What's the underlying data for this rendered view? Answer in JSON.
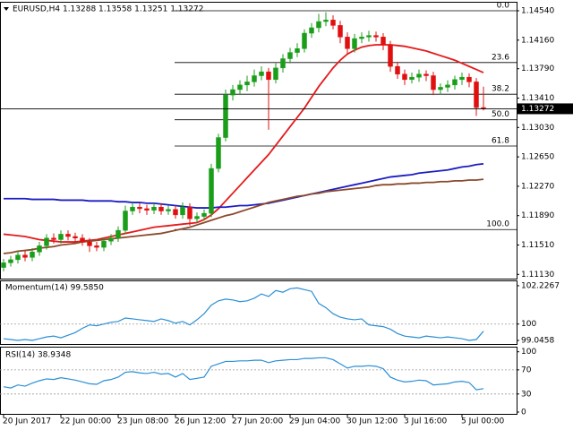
{
  "chart_data": [
    {
      "type": "candlestick",
      "title": "EURUSD,H4  1.13288 1.13558 1.13251 1.13272",
      "categories": [
        "20 Jun 2017",
        null,
        null,
        null,
        null,
        null,
        null,
        null,
        "22 Jun 00:00",
        null,
        null,
        null,
        null,
        null,
        null,
        null,
        "23 Jun 08:00",
        null,
        null,
        null,
        null,
        null,
        null,
        null,
        "26 Jun 12:00",
        null,
        null,
        null,
        null,
        null,
        null,
        null,
        "27 Jun 20:00",
        null,
        null,
        null,
        null,
        null,
        null,
        null,
        "29 Jun 04:00",
        null,
        null,
        null,
        null,
        null,
        null,
        null,
        "30 Jun 12:00",
        null,
        null,
        null,
        null,
        null,
        null,
        null,
        "3 Jul 16:00",
        null,
        null,
        null,
        null,
        null,
        null,
        null,
        "5 Jul 00:00",
        null,
        null,
        null
      ],
      "open": [
        1.1122,
        1.1128,
        1.1132,
        1.1138,
        1.1135,
        1.1142,
        1.115,
        1.116,
        1.1158,
        1.1165,
        1.1162,
        1.116,
        1.1155,
        1.115,
        1.1148,
        1.1156,
        1.116,
        1.117,
        1.1195,
        1.12,
        1.1198,
        1.1196,
        1.12,
        1.1195,
        1.1197,
        1.119,
        1.12,
        1.1185,
        1.1188,
        1.1192,
        1.125,
        1.129,
        1.1345,
        1.1352,
        1.1358,
        1.1362,
        1.137,
        1.1375,
        1.1365,
        1.138,
        1.1392,
        1.14,
        1.1405,
        1.1425,
        1.1432,
        1.144,
        1.1442,
        1.1435,
        1.142,
        1.1405,
        1.1418,
        1.142,
        1.1422,
        1.142,
        1.141,
        1.1382,
        1.1372,
        1.1365,
        1.1368,
        1.1372,
        1.137,
        1.1352,
        1.1355,
        1.1358,
        1.1365,
        1.1368,
        1.1362,
        1.13288
      ],
      "high": [
        1.1133,
        1.1137,
        1.1143,
        1.1143,
        1.1147,
        1.1155,
        1.1165,
        1.1166,
        1.117,
        1.117,
        1.1167,
        1.1165,
        1.116,
        1.1155,
        1.1161,
        1.1165,
        1.1175,
        1.1202,
        1.1206,
        1.1205,
        1.1203,
        1.1205,
        1.1205,
        1.1202,
        1.1202,
        1.1206,
        1.1205,
        1.1193,
        1.1197,
        1.1256,
        1.1295,
        1.1352,
        1.1358,
        1.1364,
        1.137,
        1.1378,
        1.1382,
        1.138,
        1.1386,
        1.1398,
        1.1406,
        1.1412,
        1.143,
        1.1438,
        1.145,
        1.1452,
        1.1448,
        1.1441,
        1.1426,
        1.1424,
        1.1426,
        1.1428,
        1.1427,
        1.1425,
        1.1415,
        1.1388,
        1.1378,
        1.1374,
        1.1378,
        1.1377,
        1.1375,
        1.136,
        1.1364,
        1.137,
        1.1374,
        1.1373,
        1.1367,
        1.13558
      ],
      "low": [
        1.1117,
        1.1123,
        1.1127,
        1.113,
        1.113,
        1.1137,
        1.1145,
        1.1153,
        1.1153,
        1.1157,
        1.1155,
        1.115,
        1.1142,
        1.1143,
        1.1143,
        1.1151,
        1.1155,
        1.1165,
        1.119,
        1.1192,
        1.119,
        1.1191,
        1.119,
        1.119,
        1.1185,
        1.1185,
        1.1176,
        1.118,
        1.1183,
        1.1187,
        1.1245,
        1.1285,
        1.1338,
        1.1345,
        1.135,
        1.1356,
        1.1364,
        1.13,
        1.136,
        1.1374,
        1.1386,
        1.1394,
        1.14,
        1.1419,
        1.1426,
        1.1434,
        1.143,
        1.1412,
        1.1398,
        1.14,
        1.1412,
        1.1414,
        1.1414,
        1.1403,
        1.1375,
        1.1366,
        1.1358,
        1.136,
        1.1362,
        1.1363,
        1.1345,
        1.1346,
        1.1349,
        1.1352,
        1.1358,
        1.1355,
        1.1318,
        1.13251
      ],
      "close": [
        1.1128,
        1.1132,
        1.1138,
        1.1135,
        1.1142,
        1.115,
        1.116,
        1.1158,
        1.1165,
        1.1162,
        1.116,
        1.1155,
        1.115,
        1.1148,
        1.1156,
        1.116,
        1.117,
        1.1195,
        1.12,
        1.1198,
        1.1196,
        1.12,
        1.1195,
        1.1197,
        1.119,
        1.12,
        1.1185,
        1.1188,
        1.1192,
        1.125,
        1.129,
        1.1345,
        1.1352,
        1.1358,
        1.1362,
        1.137,
        1.1375,
        1.1365,
        1.138,
        1.1392,
        1.14,
        1.1405,
        1.1425,
        1.1432,
        1.144,
        1.1442,
        1.1435,
        1.142,
        1.1405,
        1.1418,
        1.142,
        1.1422,
        1.142,
        1.141,
        1.1382,
        1.1372,
        1.1365,
        1.1368,
        1.1372,
        1.137,
        1.1352,
        1.1355,
        1.1358,
        1.1365,
        1.1368,
        1.1362,
        1.13288,
        1.13272
      ],
      "up_color": "#1a9e1a",
      "down_color": "#e01010",
      "series": [
        {
          "color": "#e41a1c",
          "values": [
            1.1165,
            1.1164,
            1.1163,
            1.1162,
            1.116,
            1.1158,
            1.1157,
            1.1156,
            1.1155,
            1.1155,
            1.1155,
            1.1156,
            1.1157,
            1.1158,
            1.116,
            1.1162,
            1.1164,
            1.1166,
            1.1168,
            1.117,
            1.1172,
            1.1174,
            1.1175,
            1.1176,
            1.1177,
            1.1178,
            1.1179,
            1.118,
            1.1184,
            1.119,
            1.1198,
            1.1208,
            1.1218,
            1.1228,
            1.1238,
            1.1248,
            1.1258,
            1.1268,
            1.128,
            1.1292,
            1.1304,
            1.1316,
            1.1328,
            1.1342,
            1.1356,
            1.1368,
            1.138,
            1.139,
            1.1398,
            1.1403,
            1.1407,
            1.1409,
            1.141,
            1.141,
            1.141,
            1.1409,
            1.1408,
            1.1406,
            1.1404,
            1.1402,
            1.1399,
            1.1396,
            1.1393,
            1.139,
            1.1386,
            1.1382,
            1.1378,
            1.1374
          ]
        },
        {
          "color": "#1c1cc4",
          "values": [
            1.1211,
            1.1211,
            1.1211,
            1.1211,
            1.121,
            1.121,
            1.121,
            1.121,
            1.1209,
            1.1209,
            1.1209,
            1.1209,
            1.1208,
            1.1208,
            1.1208,
            1.1208,
            1.1207,
            1.1207,
            1.1206,
            1.1206,
            1.1205,
            1.1205,
            1.1204,
            1.1203,
            1.1202,
            1.1201,
            1.12,
            1.1199,
            1.1199,
            1.1199,
            1.12,
            1.12,
            1.1201,
            1.1202,
            1.1202,
            1.1203,
            1.1204,
            1.1205,
            1.1207,
            1.1209,
            1.1211,
            1.1213,
            1.1215,
            1.1217,
            1.1219,
            1.1221,
            1.1223,
            1.1225,
            1.1227,
            1.1229,
            1.1231,
            1.1233,
            1.1235,
            1.1237,
            1.1239,
            1.124,
            1.1241,
            1.1242,
            1.1244,
            1.1245,
            1.1246,
            1.1247,
            1.1248,
            1.125,
            1.1252,
            1.1253,
            1.1255,
            1.1256
          ]
        },
        {
          "color": "#8b4a2b",
          "values": [
            1.114,
            1.1141,
            1.1143,
            1.1144,
            1.1145,
            1.1147,
            1.1148,
            1.1149,
            1.1151,
            1.1152,
            1.1153,
            1.1155,
            1.1156,
            1.1157,
            1.1158,
            1.1159,
            1.116,
            1.1161,
            1.1162,
            1.1163,
            1.1164,
            1.1165,
            1.1166,
            1.1168,
            1.117,
            1.1172,
            1.1174,
            1.1177,
            1.118,
            1.1183,
            1.1186,
            1.1189,
            1.1191,
            1.1194,
            1.1197,
            1.12,
            1.1203,
            1.1206,
            1.1208,
            1.121,
            1.1212,
            1.1214,
            1.1215,
            1.1217,
            1.1218,
            1.122,
            1.1221,
            1.1222,
            1.1223,
            1.1224,
            1.1225,
            1.1226,
            1.1228,
            1.1229,
            1.1229,
            1.123,
            1.123,
            1.1231,
            1.1231,
            1.1232,
            1.1232,
            1.1233,
            1.1233,
            1.1234,
            1.1234,
            1.1235,
            1.1235,
            1.1236
          ]
        }
      ],
      "fib_levels": [
        {
          "label": "0.0",
          "value": 1.1454
        },
        {
          "label": "23.6",
          "value": 1.1387
        },
        {
          "label": "38.2",
          "value": 1.1346
        },
        {
          "label": "50.0",
          "value": 1.1313
        },
        {
          "label": "61.8",
          "value": 1.1279
        },
        {
          "label": "100.0",
          "value": 1.1171
        }
      ],
      "ylim": [
        1.11064,
        1.14621
      ],
      "yticks": [
        {
          "value": 1.1454,
          "label": "1.14540"
        },
        {
          "value": 1.1416,
          "label": "1.14160"
        },
        {
          "value": 1.1379,
          "label": "1.13790"
        },
        {
          "value": 1.1341,
          "label": "1.13410"
        },
        {
          "value": 1.1303,
          "label": "1.13030"
        },
        {
          "value": 1.1265,
          "label": "1.12650"
        },
        {
          "value": 1.1227,
          "label": "1.12270"
        },
        {
          "value": 1.1189,
          "label": "1.11890"
        },
        {
          "value": 1.1151,
          "label": "1.11510"
        },
        {
          "value": 1.1113,
          "label": "1.11130"
        }
      ]
    },
    {
      "type": "line",
      "title": "Momentum(14) 99.5850",
      "series": [
        {
          "color": "#2a8fd6",
          "values": [
            99.15,
            99.1,
            99.05,
            99.1,
            99.05,
            99.15,
            99.25,
            99.3,
            99.2,
            99.35,
            99.5,
            99.75,
            99.95,
            99.9,
            100.0,
            100.1,
            100.15,
            100.35,
            100.3,
            100.25,
            100.2,
            100.15,
            100.3,
            100.2,
            100.05,
            100.15,
            99.95,
            100.25,
            100.6,
            101.1,
            101.35,
            101.45,
            101.4,
            101.3,
            101.35,
            101.5,
            101.75,
            101.6,
            101.95,
            101.85,
            102.05,
            102.1,
            102.0,
            101.9,
            101.2,
            100.95,
            100.6,
            100.4,
            100.3,
            100.25,
            100.3,
            99.95,
            99.9,
            99.85,
            99.7,
            99.45,
            99.3,
            99.25,
            99.2,
            99.3,
            99.25,
            99.2,
            99.25,
            99.2,
            99.15,
            99.05,
            99.1,
            99.585
          ]
        }
      ],
      "ylim": [
        98.84,
        102.38
      ],
      "yticks": [
        102.2267,
        100,
        99.0458
      ],
      "levels": [
        100
      ]
    },
    {
      "type": "line",
      "title": "RSI(14) 38.9348",
      "series": [
        {
          "color": "#2a8fd6",
          "values": [
            42,
            40,
            45,
            43,
            48,
            52,
            55,
            54,
            57,
            55,
            53,
            50,
            47,
            46,
            52,
            54,
            58,
            66,
            67,
            65,
            64,
            66,
            63,
            64,
            58,
            64,
            54,
            56,
            58,
            76,
            80,
            84,
            84,
            85,
            85,
            86,
            86,
            82,
            85,
            86,
            87,
            87,
            89,
            89,
            90,
            90,
            87,
            80,
            73,
            76,
            76,
            77,
            76,
            72,
            58,
            53,
            50,
            51,
            53,
            52,
            45,
            46,
            47,
            50,
            51,
            49,
            37,
            38.9348
          ]
        }
      ],
      "ylim": [
        -3,
        104
      ],
      "yticks": [
        100,
        70,
        30,
        0
      ],
      "levels": [
        70,
        30
      ]
    }
  ]
}
